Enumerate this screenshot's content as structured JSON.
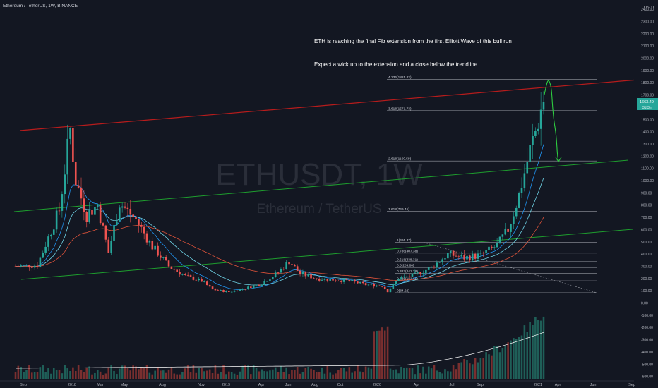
{
  "header": {
    "symbol_line": "Ethereum / TetherUS, 1W, BINANCE"
  },
  "watermark": {
    "ticker": "ETHUSDT, 1W",
    "name": "Ethereum / TetherUS"
  },
  "annotations": {
    "line1": "ETH is reaching the final Fib extension from the first Elliott Wave of this bull run",
    "line2": "Expect a wick up to the extension and a close below the trendline"
  },
  "price_scale": {
    "unit": "USDT",
    "labels": [
      "2400.00",
      "2300.00",
      "2200.00",
      "2100.00",
      "2000.00",
      "1900.00",
      "1800.00",
      "1700.00",
      "1600.00",
      "1500.00",
      "1400.00",
      "1300.00",
      "1200.00",
      "1100.00",
      "1000.00",
      "900.00",
      "800.00",
      "700.00",
      "600.00",
      "500.00",
      "400.00",
      "300.00",
      "200.00",
      "100.00",
      "0.00",
      "-100.00",
      "-200.00",
      "-300.00",
      "-400.00",
      "-500.00",
      "-600.00"
    ],
    "last_price": "1663.49",
    "countdown": "3d 3h"
  },
  "time_axis": {
    "labels": [
      "Sep",
      "2018",
      "Mar",
      "May",
      "Aug",
      "Nov",
      "2019",
      "Apr",
      "Jun",
      "Aug",
      "Oct",
      "2020",
      "Apr",
      "Jul",
      "Sep",
      "2021",
      "Apr",
      "Jun",
      "Sep"
    ]
  },
  "fib_levels": [
    {
      "label": "4.236(1825.82)",
      "price": 1825.82
    },
    {
      "label": "3.618(1571.73)",
      "price": 1571.73
    },
    {
      "label": "2.618(1160.59)",
      "price": 1160.59
    },
    {
      "label": "1.618(749.45)",
      "price": 749.45
    },
    {
      "label": "1(495.37)",
      "price": 495.37
    },
    {
      "label": "0.786(407.38)",
      "price": 407.38
    },
    {
      "label": "0.618(338.31)",
      "price": 338.31
    },
    {
      "label": "0.5(289.80)",
      "price": 289.8
    },
    {
      "label": "0.382(241.28)",
      "price": 241.28
    },
    {
      "label": "0.236(181.25)",
      "price": 181.25
    },
    {
      "label": "0(84.22)",
      "price": 84.22
    }
  ],
  "colors": {
    "background": "#131722",
    "up": "#26a69a",
    "down": "#ef5350",
    "red_trendline": "#b71c1c",
    "green_trendline": "#1e9e2e",
    "ema_blue": "#2196f3",
    "ema_red": "#e0533a",
    "fib_line": "#9598a1",
    "arrow_green": "#2ecc40",
    "text": "#d1d4dc",
    "muted": "#787b86"
  },
  "chart_data": {
    "type": "candlestick",
    "title": "Ethereum / TetherUS, 1W, BINANCE",
    "symbol": "ETHUSDT",
    "interval": "1W",
    "ylim": [
      -600,
      2450
    ],
    "grid": false,
    "approx_swing_points": [
      {
        "date": "2017-08",
        "price": 300
      },
      {
        "date": "2018-01",
        "price": 1420
      },
      {
        "date": "2018-04",
        "price": 400
      },
      {
        "date": "2018-05",
        "price": 830
      },
      {
        "date": "2018-12",
        "price": 84
      },
      {
        "date": "2019-06",
        "price": 360
      },
      {
        "date": "2019-12",
        "price": 120
      },
      {
        "date": "2020-03",
        "price": 90
      },
      {
        "date": "2020-09",
        "price": 490
      },
      {
        "date": "2021-01",
        "price": 1400
      },
      {
        "date": "2021-02",
        "price": 1663.49
      }
    ],
    "last_close": 1663.49
  }
}
